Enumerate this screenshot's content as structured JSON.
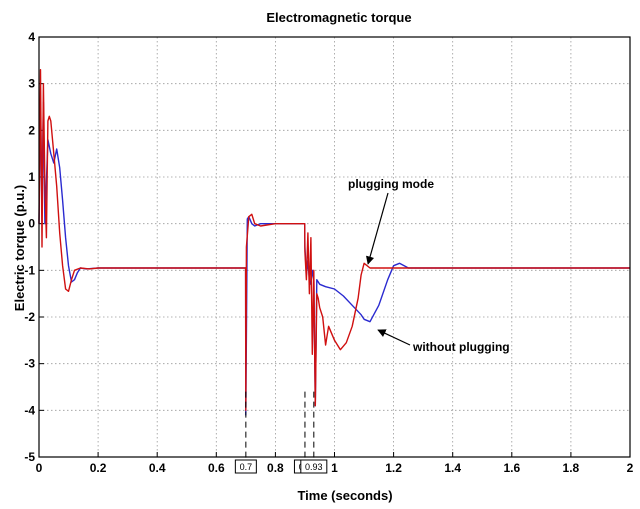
{
  "chart_data": {
    "type": "line",
    "title": "Electromagnetic torque",
    "xlabel": "Time (seconds)",
    "ylabel": "Electric torque (p.u.)",
    "xlim": [
      0,
      2
    ],
    "ylim": [
      -5,
      4
    ],
    "grid": true,
    "x_ticks": [
      0,
      0.2,
      0.4,
      0.6,
      0.8,
      1,
      1.2,
      1.4,
      1.6,
      1.8,
      2
    ],
    "x_tick_labels": [
      "0",
      "0.2",
      "0.4",
      "0.6",
      "0.8",
      "1",
      "1.2",
      "1.4",
      "1.6",
      "1.8",
      "2"
    ],
    "y_ticks": [
      -5,
      -4,
      -3,
      -2,
      -1,
      0,
      1,
      2,
      3,
      4
    ],
    "y_tick_labels": [
      "-5",
      "-4",
      "-3",
      "-2",
      "-1",
      "0",
      "1",
      "2",
      "3",
      "4"
    ],
    "series": [
      {
        "color": "#2a2ad0",
        "x": [
          0,
          0.005,
          0.01,
          0.015,
          0.02,
          0.03,
          0.04,
          0.05,
          0.06,
          0.07,
          0.08,
          0.09,
          0.1,
          0.11,
          0.12,
          0.13,
          0.14,
          0.16,
          0.2,
          0.4,
          0.6,
          0.699,
          0.7,
          0.705,
          0.71,
          0.72,
          0.73,
          0.75,
          0.8,
          0.88,
          0.899,
          0.9,
          0.905,
          0.91,
          0.915,
          0.92,
          0.925,
          0.93,
          0.935,
          0.94,
          0.95,
          0.97,
          1,
          1.03,
          1.06,
          1.09,
          1.1,
          1.12,
          1.15,
          1.18,
          1.2,
          1.22,
          1.25,
          1.3,
          1.5,
          1.7,
          2
        ],
        "y": [
          0,
          2.5,
          0.5,
          2.6,
          0,
          1.8,
          1.5,
          1.3,
          1.6,
          1.2,
          0.5,
          -0.3,
          -0.9,
          -1.25,
          -1.2,
          -1.05,
          -0.95,
          -0.97,
          -0.95,
          -0.95,
          -0.95,
          -0.95,
          -4.1,
          0.1,
          0.15,
          0,
          -0.05,
          0,
          0,
          0,
          0,
          -0.5,
          -1.1,
          -0.8,
          -1.2,
          -1.3,
          -1.0,
          -1.2,
          -3.9,
          -1.2,
          -1.3,
          -1.35,
          -1.4,
          -1.55,
          -1.75,
          -1.95,
          -2.05,
          -2.1,
          -1.75,
          -1.2,
          -0.9,
          -0.85,
          -0.95,
          -0.95,
          -0.95,
          -0.95,
          -0.95
        ]
      },
      {
        "color": "#d01010",
        "x": [
          0,
          0.005,
          0.01,
          0.015,
          0.02,
          0.025,
          0.03,
          0.035,
          0.04,
          0.05,
          0.06,
          0.07,
          0.08,
          0.09,
          0.1,
          0.11,
          0.12,
          0.14,
          0.17,
          0.2,
          0.4,
          0.6,
          0.699,
          0.7,
          0.702,
          0.71,
          0.72,
          0.73,
          0.75,
          0.8,
          0.88,
          0.899,
          0.9,
          0.905,
          0.91,
          0.915,
          0.92,
          0.925,
          0.93,
          0.935,
          0.94,
          0.945,
          0.95,
          0.96,
          0.97,
          0.98,
          1,
          1.02,
          1.04,
          1.06,
          1.08,
          1.09,
          1.1,
          1.12,
          1.15,
          1.2,
          1.3,
          1.5,
          1.7,
          2
        ],
        "y": [
          0,
          3.3,
          -0.5,
          3.0,
          0.8,
          -0.3,
          2.2,
          2.3,
          2.2,
          1.5,
          0.8,
          -0.2,
          -0.9,
          -1.4,
          -1.45,
          -1.2,
          -1.0,
          -0.95,
          -0.97,
          -0.95,
          -0.95,
          -0.95,
          -0.95,
          -4.0,
          -0.5,
          0.15,
          0.2,
          0,
          -0.05,
          0,
          0,
          0,
          -0.6,
          -1.2,
          -0.2,
          -1.5,
          -0.3,
          -2.8,
          -1.0,
          -3.9,
          -1.5,
          -1.6,
          -1.8,
          -2.0,
          -2.6,
          -2.2,
          -2.5,
          -2.7,
          -2.55,
          -2.2,
          -1.6,
          -1.1,
          -0.85,
          -0.95,
          -0.95,
          -0.95,
          -0.95,
          -0.95,
          -0.95,
          -0.95
        ]
      }
    ],
    "markers": [
      "0.7",
      "0.9",
      "0.93"
    ],
    "annotations": [
      "plugging mode",
      "without plugging"
    ]
  }
}
